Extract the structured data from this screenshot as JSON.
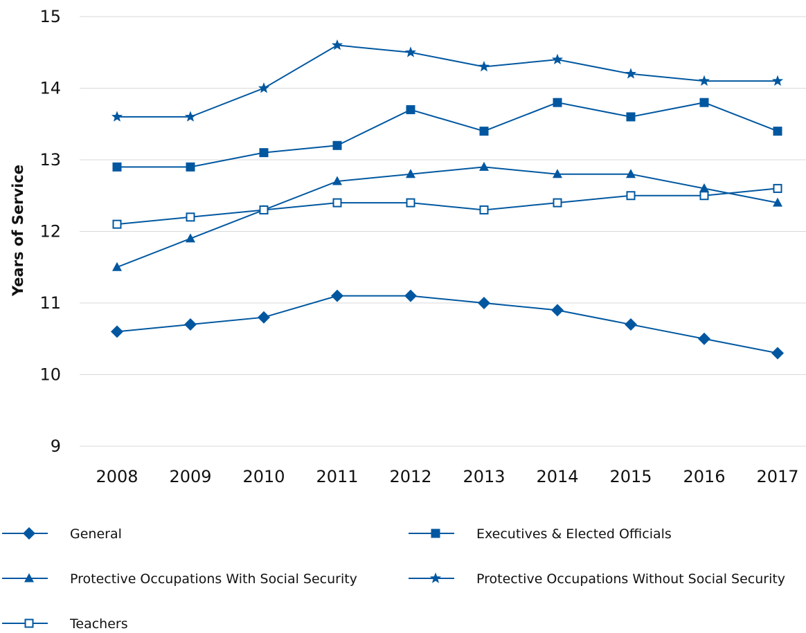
{
  "chart_data": {
    "type": "line",
    "title": "",
    "xlabel": "",
    "ylabel": "Years of Service",
    "x": [
      "2008",
      "2009",
      "2010",
      "2011",
      "2012",
      "2013",
      "2014",
      "2015",
      "2016",
      "2017"
    ],
    "yticks": [
      "9",
      "10",
      "11",
      "12",
      "13",
      "14",
      "15"
    ],
    "ylim": [
      9,
      15
    ],
    "grid": "horizontal",
    "legend_position": "bottom",
    "line_color": "#0057A0",
    "series": [
      {
        "name": "General",
        "marker": "diamond",
        "values": [
          10.6,
          10.7,
          10.8,
          11.1,
          11.1,
          11.0,
          10.9,
          10.7,
          10.5,
          10.3
        ]
      },
      {
        "name": "Executives & Elected Officials",
        "marker": "square",
        "values": [
          12.9,
          12.9,
          13.1,
          13.2,
          13.7,
          13.4,
          13.8,
          13.6,
          13.8,
          13.4
        ]
      },
      {
        "name": "Protective Occupations With Social Security",
        "marker": "triangle",
        "values": [
          11.5,
          11.9,
          12.3,
          12.7,
          12.8,
          12.9,
          12.8,
          12.8,
          12.6,
          12.4
        ]
      },
      {
        "name": "Protective Occupations Without Social Security",
        "marker": "star",
        "values": [
          13.6,
          13.6,
          14.0,
          14.6,
          14.5,
          14.3,
          14.4,
          14.2,
          14.1,
          14.1
        ]
      },
      {
        "name": "Teachers",
        "marker": "square-open",
        "values": [
          12.1,
          12.2,
          12.3,
          12.4,
          12.4,
          12.3,
          12.4,
          12.5,
          12.5,
          12.6
        ]
      }
    ]
  }
}
